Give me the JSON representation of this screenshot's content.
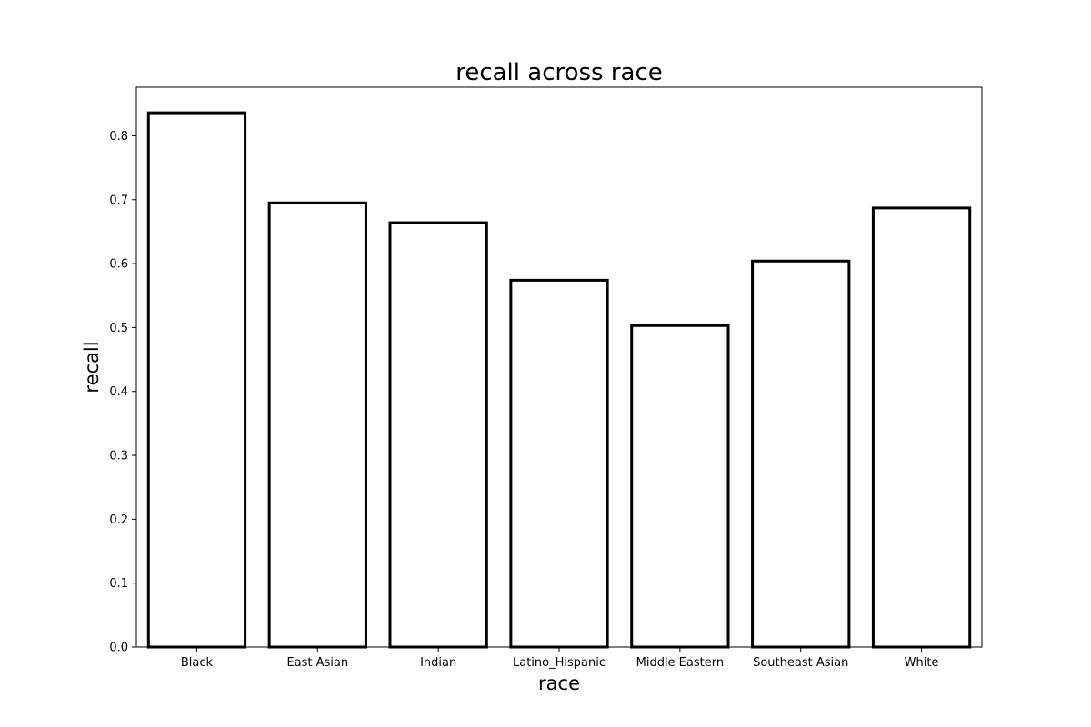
{
  "chart_data": {
    "type": "bar",
    "title": "recall across race",
    "xlabel": "race",
    "ylabel": "recall",
    "categories": [
      "Black",
      "East Asian",
      "Indian",
      "Latino_Hispanic",
      "Middle Eastern",
      "Southeast Asian",
      "White"
    ],
    "values": [
      0.836,
      0.695,
      0.664,
      0.574,
      0.503,
      0.604,
      0.687
    ],
    "ylim": [
      0,
      0.876
    ],
    "yticks": [
      0.0,
      0.1,
      0.2,
      0.3,
      0.4,
      0.5,
      0.6,
      0.7,
      0.8
    ],
    "ytick_labels": [
      "0.0",
      "0.1",
      "0.2",
      "0.3",
      "0.4",
      "0.5",
      "0.6",
      "0.7",
      "0.8"
    ],
    "grid": false,
    "legend": "none",
    "bar_fill": "#ffffff",
    "bar_edge": "#000000"
  }
}
